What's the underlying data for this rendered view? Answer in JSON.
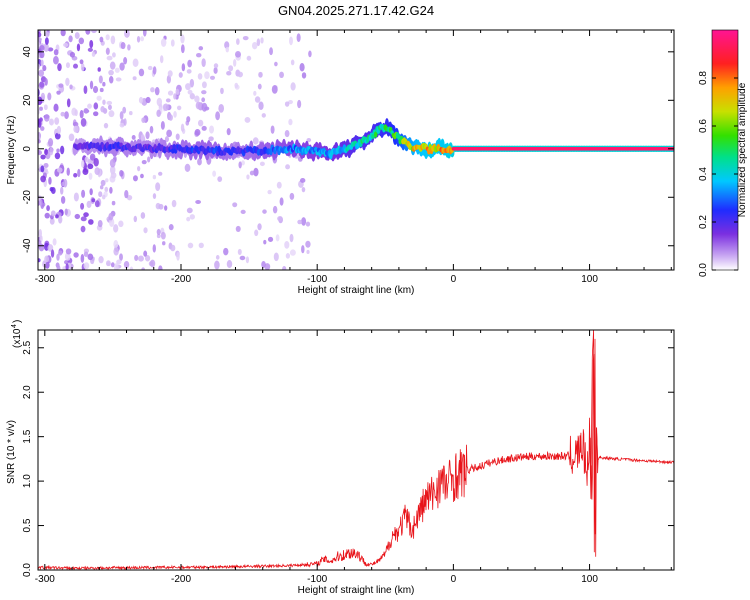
{
  "title": "GN04.2025.271.17.42.G24",
  "chart_data": [
    {
      "type": "heatmap",
      "xlabel": "Height of straight line (km)",
      "ylabel": "Frequency (Hz)",
      "xlim": [
        -305,
        162
      ],
      "ylim": [
        -50,
        49
      ],
      "xticks": [
        -300,
        -200,
        -100,
        0,
        100
      ],
      "xtick_labels": [
        "-300",
        "-200",
        "-100",
        "0",
        "100"
      ],
      "yticks": [
        -40,
        -20,
        0,
        20,
        40
      ],
      "ytick_labels": [
        "-40",
        "-20",
        "0",
        "20",
        "40"
      ],
      "colorbar": {
        "label": "Normalized spectral amplitude",
        "range": [
          0,
          1
        ],
        "ticks": [
          0.0,
          0.2,
          0.4,
          0.6,
          0.8
        ],
        "tick_labels": [
          "0.0",
          "0.2",
          "0.4",
          "0.6",
          "0.8"
        ],
        "colors": [
          "#ffffff",
          "#c8a6f2",
          "#7b2fe0",
          "#1f2cff",
          "#00c8ff",
          "#00e08a",
          "#33e000",
          "#c8e000",
          "#ffa000",
          "#ff2020",
          "#ff1493"
        ]
      },
      "ridge": {
        "x": [
          -275,
          -250,
          -220,
          -200,
          -180,
          -160,
          -140,
          -120,
          -100,
          -90,
          -80,
          -70,
          -60,
          -55,
          -50,
          -45,
          -40,
          -30,
          -20,
          -10,
          0,
          50,
          90,
          100,
          162
        ],
        "freq": [
          1,
          1,
          0,
          0,
          -1,
          -1,
          -1,
          0,
          -1,
          -2,
          0,
          2,
          5,
          8,
          9,
          7,
          4,
          1,
          0,
          0,
          0,
          0,
          0,
          0,
          0
        ],
        "amplitude": [
          0.25,
          0.3,
          0.28,
          0.32,
          0.35,
          0.3,
          0.35,
          0.4,
          0.42,
          0.45,
          0.5,
          0.55,
          0.55,
          0.6,
          0.6,
          0.65,
          0.7,
          0.85,
          0.9,
          0.9,
          0.95,
          0.97,
          0.97,
          0.97,
          0.97
        ]
      }
    },
    {
      "type": "line",
      "xlabel": "Height of straight line (km)",
      "ylabel": "SNR (10 * v/v)",
      "scale_note": "(x10",
      "scale_exp": "4",
      "xlim": [
        -305,
        162
      ],
      "ylim": [
        0,
        27000
      ],
      "xticks": [
        -300,
        -200,
        -100,
        0,
        100
      ],
      "xtick_labels": [
        "-300",
        "-200",
        "-100",
        "0",
        "100"
      ],
      "yticks": [
        0,
        5000,
        10000,
        15000,
        20000,
        25000
      ],
      "ytick_labels": [
        "0.0",
        "0.5",
        "1.0",
        "1.5",
        "2.0",
        "2.5"
      ],
      "line_color": "#e8141a",
      "series": [
        {
          "x": [
            -305,
            -280,
            -250,
            -200,
            -150,
            -120,
            -100,
            -95,
            -90,
            -85,
            -80,
            -75,
            -70,
            -65,
            -60,
            -55,
            -50,
            -45,
            -40,
            -35,
            -30,
            -25,
            -20,
            -15,
            -10,
            -5,
            0,
            10,
            20,
            30,
            40,
            50,
            60,
            70,
            80,
            90,
            95,
            98,
            100,
            102,
            103,
            104,
            105,
            106,
            108,
            110,
            120,
            140,
            162
          ],
          "y": [
            300,
            200,
            250,
            300,
            400,
            500,
            700,
            1200,
            1000,
            1500,
            1700,
            2000,
            1800,
            800,
            600,
            1000,
            1800,
            3800,
            4500,
            6000,
            4500,
            6500,
            8000,
            8500,
            10000,
            9500,
            10500,
            11200,
            11700,
            12200,
            12500,
            12700,
            12800,
            12800,
            12800,
            12900,
            14000,
            11000,
            15000,
            9000,
            27000,
            1500,
            16000,
            12500,
            12700,
            12600,
            12500,
            12300,
            12100
          ]
        }
      ]
    }
  ]
}
